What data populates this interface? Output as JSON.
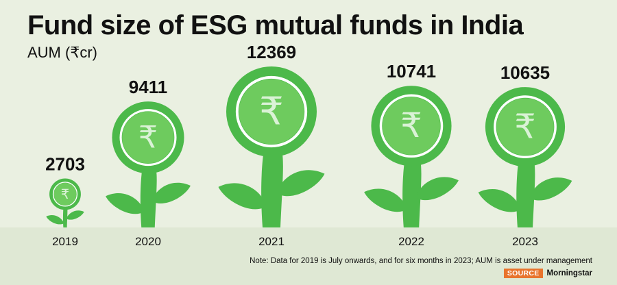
{
  "header": {
    "title": "Fund size of ESG mutual funds in India",
    "subtitle": "AUM  (₹cr)"
  },
  "footer": {
    "note": "Note: Data for 2019 is July onwards, and for six months in 2023; AUM is asset under management",
    "source_label": "SOURCE",
    "source_name": "Morningstar"
  },
  "colors": {
    "background": "#eaf0e1",
    "plant_green": "#4cb94a",
    "plant_light": "#6ecb5e",
    "ground": "#d9e4cc",
    "source_badge": "#e8742d"
  },
  "chart_data": {
    "type": "bar",
    "style": "pictogram-plants",
    "categories": [
      "2019",
      "2020",
      "2021",
      "2022",
      "2023"
    ],
    "values": [
      2703,
      9411,
      12369,
      10741,
      10635
    ],
    "ylabel": "AUM  (₹cr)",
    "grid": false,
    "legend": "none"
  }
}
